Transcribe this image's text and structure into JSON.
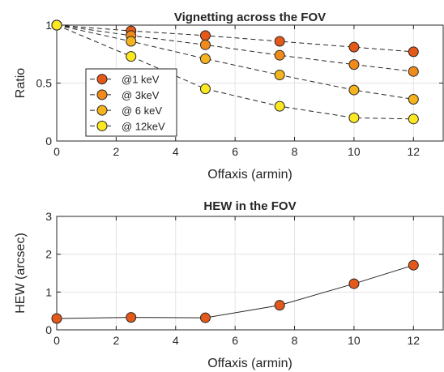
{
  "chart_data": [
    {
      "type": "line",
      "title": "Vignetting across the FOV",
      "xlabel": "Offaxis (armin)",
      "ylabel": "Ratio",
      "xlim": [
        0,
        13
      ],
      "ylim": [
        0,
        1
      ],
      "xticks": [
        "0",
        "2",
        "4",
        "6",
        "8",
        "10",
        "12"
      ],
      "yticks": [
        "0",
        "0.5",
        "1"
      ],
      "grid": true,
      "legend": "inside-left",
      "line_style": "dashed",
      "x": [
        0,
        2.5,
        5,
        7.5,
        10,
        12
      ],
      "series": [
        {
          "name": "@1 keV",
          "color": "#e4581a",
          "values": [
            1.0,
            0.95,
            0.91,
            0.86,
            0.81,
            0.77
          ]
        },
        {
          "name": "@ 3keV",
          "color": "#f08a1c",
          "values": [
            1.0,
            0.91,
            0.83,
            0.74,
            0.66,
            0.6
          ]
        },
        {
          "name": "@ 6 keV",
          "color": "#f5b41e",
          "values": [
            1.0,
            0.86,
            0.71,
            0.57,
            0.44,
            0.36
          ]
        },
        {
          "name": "@ 12keV",
          "color": "#fbe821",
          "values": [
            1.0,
            0.73,
            0.45,
            0.3,
            0.2,
            0.19
          ]
        }
      ]
    },
    {
      "type": "line",
      "title": "HEW in the FOV",
      "xlabel": "Offaxis (armin)",
      "ylabel": "HEW (arcsec)",
      "xlim": [
        0,
        13
      ],
      "ylim": [
        0,
        3
      ],
      "xticks": [
        "0",
        "2",
        "4",
        "6",
        "8",
        "10",
        "12"
      ],
      "yticks": [
        "0",
        "1",
        "2",
        "3"
      ],
      "grid": true,
      "line_style": "solid",
      "x": [
        0,
        2.5,
        5,
        7.5,
        10,
        12
      ],
      "series": [
        {
          "color": "#e4581a",
          "values": [
            0.3,
            0.33,
            0.32,
            0.65,
            1.22,
            1.71
          ]
        }
      ]
    }
  ]
}
